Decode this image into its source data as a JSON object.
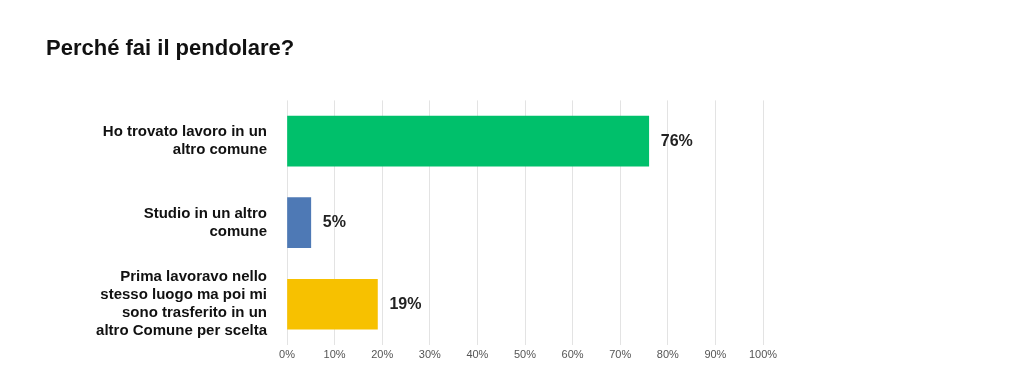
{
  "chart_data": {
    "type": "bar",
    "orientation": "horizontal",
    "title": "Perché fai il pendolare?",
    "categories": [
      "Ho trovato lavoro in un altro comune",
      "Studio in un altro comune",
      "Prima lavoravo nello stesso luogo ma poi mi sono trasferito in un altro Comune per scelta"
    ],
    "values": [
      76,
      5,
      19
    ],
    "colors": [
      "#00c06b",
      "#4e79b5",
      "#f7c100"
    ],
    "value_labels": [
      "76%",
      "5%",
      "19%"
    ],
    "xlim": [
      0,
      100
    ],
    "xticks": [
      {
        "value": 0,
        "label": "0%"
      },
      {
        "value": 10,
        "label": "10%"
      },
      {
        "value": 20,
        "label": "20%"
      },
      {
        "value": 30,
        "label": "30%"
      },
      {
        "value": 40,
        "label": "40%"
      },
      {
        "value": 50,
        "label": "50%"
      },
      {
        "value": 60,
        "label": "60%"
      },
      {
        "value": 70,
        "label": "70%"
      },
      {
        "value": 80,
        "label": "80%"
      },
      {
        "value": 90,
        "label": "90%"
      },
      {
        "value": 100,
        "label": "100%"
      }
    ],
    "grid": "x",
    "legend": false
  }
}
